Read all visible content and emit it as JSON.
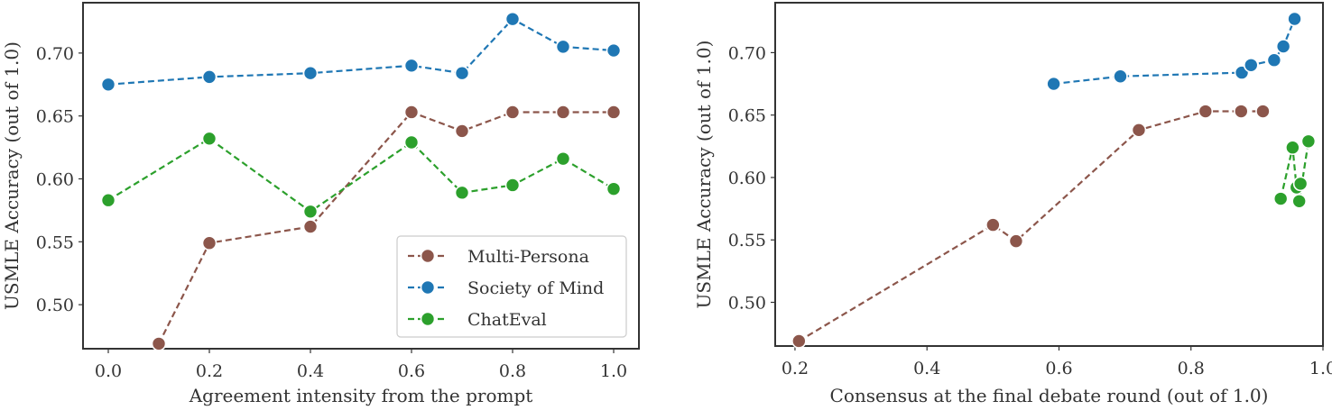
{
  "chart_data": [
    {
      "type": "line",
      "title": "",
      "xlabel": "Agreement intensity from the prompt",
      "ylabel": "USMLE Accuracy (out of 1.0)",
      "xlim": [
        -0.05,
        1.05
      ],
      "ylim": [
        0.465,
        0.74
      ],
      "xticks": [
        0.0,
        0.2,
        0.4,
        0.6,
        0.8,
        1.0
      ],
      "xtick_labels": [
        "0.0",
        "0.2",
        "0.4",
        "0.6",
        "0.8",
        "1.0"
      ],
      "yticks": [
        0.5,
        0.55,
        0.6,
        0.65,
        0.7
      ],
      "ytick_labels": [
        "0.50",
        "0.55",
        "0.60",
        "0.65",
        "0.70"
      ],
      "grid": false,
      "legend": {
        "placement": "lower-right"
      },
      "series": [
        {
          "name": "Multi-Persona",
          "color": "#8c564b",
          "x": [
            0.1,
            0.2,
            0.4,
            0.6,
            0.7,
            0.8,
            0.9,
            1.0
          ],
          "y": [
            0.469,
            0.549,
            0.562,
            0.653,
            0.638,
            0.653,
            0.653,
            0.653
          ]
        },
        {
          "name": "Society of Mind",
          "color": "#1f77b4",
          "x": [
            0.0,
            0.2,
            0.4,
            0.6,
            0.7,
            0.8,
            0.9,
            1.0
          ],
          "y": [
            0.675,
            0.681,
            0.684,
            0.69,
            0.684,
            0.727,
            0.705,
            0.702
          ]
        },
        {
          "name": "ChatEval",
          "color": "#2ca02c",
          "x": [
            0.0,
            0.2,
            0.4,
            0.6,
            0.7,
            0.8,
            0.9,
            1.0
          ],
          "y": [
            0.583,
            0.632,
            0.574,
            0.629,
            0.589,
            0.595,
            0.616,
            0.592
          ]
        }
      ]
    },
    {
      "type": "line",
      "title": "",
      "xlabel": "Consensus at the final debate round (out of 1.0)",
      "ylabel": "USMLE Accuracy (out of 1.0)",
      "xlim": [
        0.17,
        1.0
      ],
      "ylim": [
        0.465,
        0.74
      ],
      "xticks": [
        0.2,
        0.4,
        0.6,
        0.8,
        1.0
      ],
      "xtick_labels": [
        "0.2",
        "0.4",
        "0.6",
        "0.8",
        "1.0"
      ],
      "yticks": [
        0.5,
        0.55,
        0.6,
        0.65,
        0.7
      ],
      "ytick_labels": [
        "0.50",
        "0.55",
        "0.60",
        "0.65",
        "0.70"
      ],
      "grid": false,
      "series": [
        {
          "name": "Multi-Persona",
          "color": "#8c564b",
          "x": [
            0.206,
            0.5,
            0.535,
            0.721,
            0.822,
            0.876,
            0.909
          ],
          "y": [
            0.469,
            0.562,
            0.549,
            0.638,
            0.653,
            0.653,
            0.653
          ]
        },
        {
          "name": "Society of Mind",
          "color": "#1f77b4",
          "x": [
            0.592,
            0.693,
            0.877,
            0.891,
            0.926,
            0.94,
            0.957
          ],
          "y": [
            0.675,
            0.681,
            0.684,
            0.69,
            0.694,
            0.705,
            0.727
          ]
        },
        {
          "name": "ChatEval",
          "color": "#2ca02c",
          "x": [
            0.936,
            0.954,
            0.96,
            0.966,
            0.964,
            0.978
          ],
          "y": [
            0.583,
            0.624,
            0.592,
            0.595,
            0.581,
            0.629
          ]
        }
      ]
    }
  ]
}
